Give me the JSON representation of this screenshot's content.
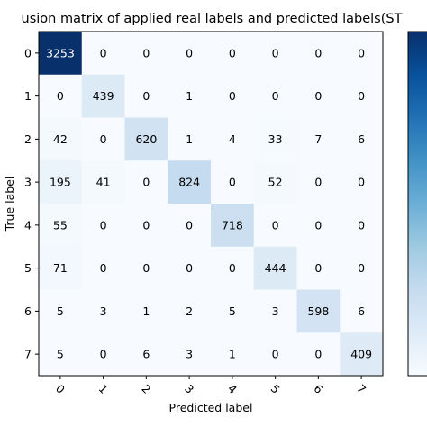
{
  "chart_data": {
    "type": "heatmap",
    "title": "usion matrix of applied real labels and predicted labels(ST",
    "xlabel": "Predicted label",
    "ylabel": "True label",
    "row_labels": [
      "0",
      "1",
      "2",
      "3",
      "4",
      "5",
      "6",
      "7"
    ],
    "col_labels": [
      "0",
      "1",
      "2",
      "3",
      "4",
      "5",
      "6",
      "7"
    ],
    "matrix": [
      [
        3253,
        0,
        0,
        0,
        0,
        0,
        0,
        0
      ],
      [
        0,
        439,
        0,
        1,
        0,
        0,
        0,
        0
      ],
      [
        42,
        0,
        620,
        1,
        4,
        33,
        7,
        6
      ],
      [
        195,
        41,
        0,
        824,
        0,
        52,
        0,
        0
      ],
      [
        55,
        0,
        0,
        0,
        718,
        0,
        0,
        0
      ],
      [
        71,
        0,
        0,
        0,
        0,
        444,
        0,
        0
      ],
      [
        5,
        3,
        1,
        2,
        5,
        3,
        598,
        6
      ],
      [
        5,
        0,
        6,
        3,
        1,
        0,
        0,
        409
      ]
    ],
    "colormap": "Blues",
    "value_range": [
      0,
      3253
    ],
    "colorbar": true
  }
}
